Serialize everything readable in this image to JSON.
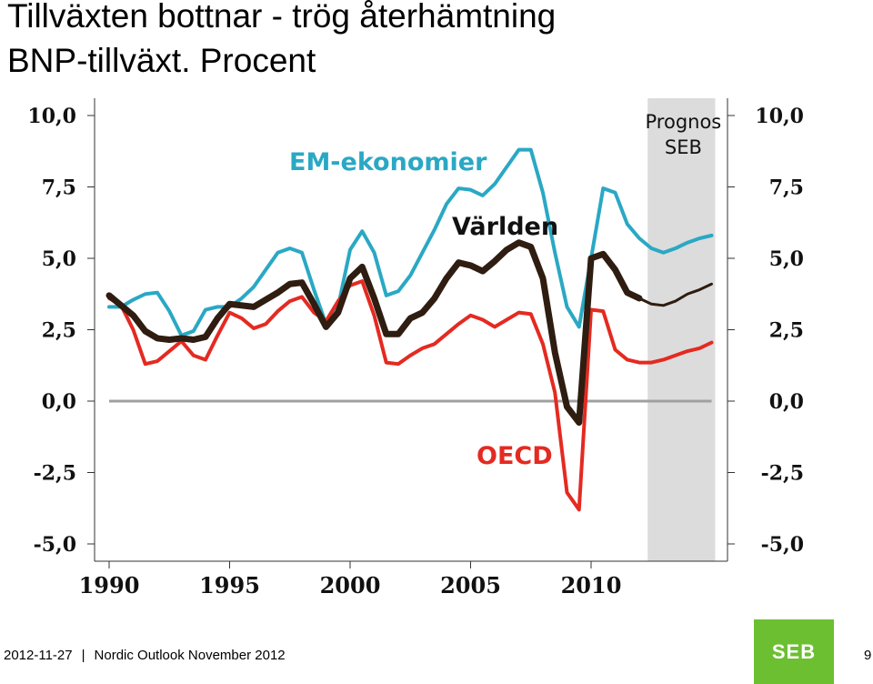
{
  "header": {
    "title": "Tillväxten bottnar - trög återhämtning",
    "subtitle": "BNP-tillväxt. Procent"
  },
  "footer": {
    "date": "2012-11-27",
    "separator": "|",
    "publication": "Nordic Outlook November 2012",
    "page": "9",
    "logo_text": "SEB"
  },
  "chart_data": {
    "type": "line",
    "x_ticks": [
      "1990",
      "1995",
      "2000",
      "2005",
      "2010"
    ],
    "y_ticks_left": [
      "10,0",
      "7,5",
      "5,0",
      "2,5",
      "0,0",
      "-2,5",
      "-5,0"
    ],
    "y_ticks_right": [
      "10,0",
      "7,5",
      "5,0",
      "2,5",
      "0,0",
      "-2,5",
      "-5,0"
    ],
    "ylim": [
      -5,
      10
    ],
    "xlim": [
      1990,
      2015
    ],
    "forecast_label": [
      "Prognos",
      "SEB"
    ],
    "forecast_range": [
      2012.5,
      2015
    ],
    "series": [
      {
        "name": "EM-ekonomier",
        "color": "#2aa8c4",
        "x": [
          1990,
          1990.5,
          1991,
          1991.5,
          1992,
          1992.5,
          1993,
          1993.5,
          1994,
          1994.5,
          1995,
          1995.5,
          1996,
          1996.5,
          1997,
          1997.5,
          1998,
          1998.5,
          1999,
          1999.5,
          2000,
          2000.5,
          2001,
          2001.5,
          2002,
          2002.5,
          2003,
          2003.5,
          2004,
          2004.5,
          2005,
          2005.5,
          2006,
          2006.5,
          2007,
          2007.5,
          2008,
          2008.5,
          2009,
          2009.5,
          2010,
          2010.5,
          2011,
          2011.5,
          2012,
          2012.5,
          2013,
          2013.5,
          2014,
          2014.5,
          2015
        ],
        "values": [
          3.3,
          3.3,
          3.55,
          3.75,
          3.8,
          3.15,
          2.3,
          2.45,
          3.2,
          3.3,
          3.3,
          3.6,
          4.0,
          4.6,
          5.2,
          5.35,
          5.2,
          3.9,
          2.7,
          3.3,
          5.3,
          5.95,
          5.2,
          3.7,
          3.85,
          4.4,
          5.2,
          6.0,
          6.9,
          7.45,
          7.4,
          7.2,
          7.6,
          8.2,
          8.8,
          8.8,
          7.3,
          5.2,
          3.3,
          2.6,
          5.0,
          7.45,
          7.3,
          6.2,
          5.7,
          5.35,
          5.2,
          5.35,
          5.55,
          5.7,
          5.8
        ]
      },
      {
        "name": "OECD",
        "color": "#e42a21",
        "x": [
          1990,
          1990.5,
          1991,
          1991.5,
          1992,
          1992.5,
          1993,
          1993.5,
          1994,
          1994.5,
          1995,
          1995.5,
          1996,
          1996.5,
          1997,
          1997.5,
          1998,
          1998.5,
          1999,
          1999.5,
          2000,
          2000.5,
          2001,
          2001.5,
          2002,
          2002.5,
          2003,
          2003.5,
          2004,
          2004.5,
          2005,
          2005.5,
          2006,
          2006.5,
          2007,
          2007.5,
          2008,
          2008.5,
          2009,
          2009.5,
          2010,
          2010.5,
          2011,
          2011.5,
          2012,
          2012.5,
          2013,
          2013.5,
          2014,
          2014.5,
          2015
        ],
        "values": [
          3.6,
          3.35,
          2.5,
          1.3,
          1.4,
          1.75,
          2.1,
          1.6,
          1.45,
          2.3,
          3.1,
          2.9,
          2.55,
          2.7,
          3.15,
          3.5,
          3.65,
          3.1,
          2.8,
          3.5,
          4.05,
          4.2,
          3.0,
          1.35,
          1.3,
          1.6,
          1.85,
          2.0,
          2.35,
          2.7,
          3.0,
          2.85,
          2.6,
          2.85,
          3.1,
          3.05,
          2.0,
          0.3,
          -3.2,
          -3.8,
          3.2,
          3.15,
          1.8,
          1.45,
          1.35,
          1.35,
          1.45,
          1.6,
          1.75,
          1.85,
          2.05
        ]
      },
      {
        "name": "Världen",
        "color": "#2e1d10",
        "x": [
          1990,
          1990.5,
          1991,
          1991.5,
          1992,
          1992.5,
          1993,
          1993.5,
          1994,
          1994.5,
          1995,
          1995.5,
          1996,
          1996.5,
          1997,
          1997.5,
          1998,
          1998.5,
          1999,
          1999.5,
          2000,
          2000.5,
          2001,
          2001.5,
          2002,
          2002.5,
          2003,
          2003.5,
          2004,
          2004.5,
          2005,
          2005.5,
          2006,
          2006.5,
          2007,
          2007.5,
          2008,
          2008.5,
          2009,
          2009.5,
          2010,
          2010.5,
          2011,
          2011.5,
          2012,
          2012.5,
          2013,
          2013.5,
          2014,
          2014.5,
          2015
        ],
        "values": [
          3.7,
          3.35,
          3.0,
          2.45,
          2.2,
          2.15,
          2.2,
          2.15,
          2.25,
          2.9,
          3.4,
          3.35,
          3.3,
          3.55,
          3.8,
          4.1,
          4.15,
          3.4,
          2.6,
          3.1,
          4.3,
          4.7,
          3.6,
          2.35,
          2.35,
          2.9,
          3.1,
          3.6,
          4.3,
          4.85,
          4.75,
          4.55,
          4.9,
          5.3,
          5.55,
          5.4,
          4.3,
          1.7,
          -0.2,
          -0.75,
          5.0,
          5.15,
          4.6,
          3.8,
          3.6,
          3.4,
          3.35,
          3.5,
          3.75,
          3.9,
          4.1
        ]
      }
    ]
  }
}
